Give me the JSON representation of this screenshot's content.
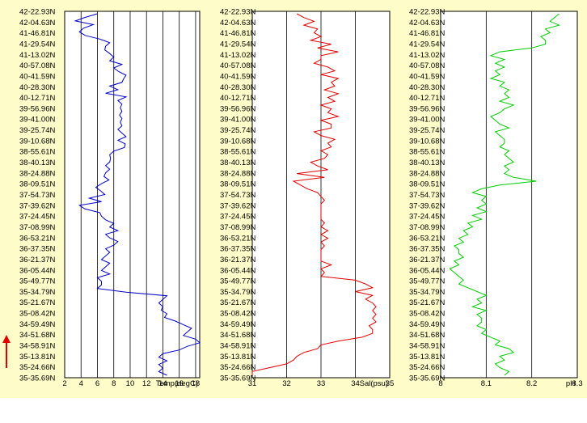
{
  "colors": {
    "panel_bg": "#fefcc9",
    "plot_bg": "#ffffff",
    "temperature": "#0000c8",
    "salinity": "#e00000",
    "ph": "#00cc00",
    "arrow": "#e00000"
  },
  "icons": {
    "direction_arrow": "up-arrow-icon"
  },
  "chart_data": [
    {
      "type": "line",
      "orientation": "vertical-profile",
      "xlabel": "Temp(degC)",
      "xlim": [
        2,
        18.5
      ],
      "xticks": [
        "2",
        "4",
        "6",
        "8",
        "10",
        "12",
        "14",
        "16",
        "18"
      ],
      "grid": true,
      "latitude_labels": [
        "42-22.93N",
        "42-04.63N",
        "41-46.81N",
        "41-29.54N",
        "41-13.02N",
        "40-57.08N",
        "40-41.59N",
        "40-28.30N",
        "40-12.71N",
        "39-56.96N",
        "39-41.00N",
        "39-25.74N",
        "39-10.68N",
        "38-55.61N",
        "38-40.13N",
        "38-24.88N",
        "38-09.51N",
        "37-54.73N",
        "37-39.62N",
        "37-24.45N",
        "37-08.99N",
        "36-53.21N",
        "36-37.35N",
        "36-21.37N",
        "36-05.44N",
        "35-49.77N",
        "35-34.79N",
        "35-21.67N",
        "35-08.42N",
        "34-59.49N",
        "34-51.68N",
        "34-58.91N",
        "35-13.81N",
        "35-24.66N",
        "35-35.69N"
      ],
      "values": [
        6.0,
        4.5,
        3.3,
        5.5,
        4.3,
        3.8,
        4.5,
        6.3,
        7.5,
        7.0,
        6.9,
        7.5,
        8.0,
        7.5,
        9.0,
        8.0,
        8.6,
        9.5,
        9.2,
        9.0,
        7.5,
        8.5,
        7.0,
        9.5,
        8.5,
        9.0,
        8.8,
        9.0,
        8.7,
        9.0,
        8.8,
        9.0,
        8.5,
        9.0,
        9.5,
        8.5,
        9.4,
        9.3,
        8.0,
        7.5,
        7.6,
        7.5,
        7.0,
        7.5,
        7.0,
        6.8,
        7.4,
        6.5,
        5.8,
        6.4,
        6.9,
        5.0,
        6.5,
        3.8,
        4.5,
        6.3,
        6.5,
        7.0,
        8.0,
        7.5,
        8.5,
        7.0,
        7.5,
        8.5,
        8.0,
        7.0,
        7.5,
        7.0,
        6.5,
        7.5,
        7.0,
        6.5,
        7.5,
        6.0,
        6.5,
        6.5,
        6.0,
        9.5,
        14.5,
        14.0,
        13.5,
        14.0,
        13.8,
        14.5,
        14.2,
        15.5,
        16.5,
        17.5,
        17.0,
        16.5,
        18.0,
        18.5,
        17.0,
        16.0,
        14.0,
        13.5,
        14.5,
        13.5,
        14.0,
        13.5,
        14.5
      ]
    },
    {
      "type": "line",
      "orientation": "vertical-profile",
      "xlabel": "Sal(psu)",
      "xlim": [
        31,
        35
      ],
      "xticks": [
        "31",
        "32",
        "33",
        "34",
        "35"
      ],
      "grid": true,
      "latitude_labels": [
        "42-22.93N",
        "42-04.63N",
        "41-46.81N",
        "41-29.54N",
        "41-13.02N",
        "40-57.08N",
        "40-41.59N",
        "40-28.30N",
        "40-12.71N",
        "39-56.96N",
        "39-41.00N",
        "39-25.74N",
        "39-10.68N",
        "38-55.61N",
        "38-40.13N",
        "38-24.88N",
        "38-09.51N",
        "37-54.73N",
        "37-39.62N",
        "37-24.45N",
        "37-08.99N",
        "36-53.21N",
        "36-37.35N",
        "36-21.37N",
        "36-05.44N",
        "35-49.77N",
        "35-34.79N",
        "35-21.67N",
        "35-08.42N",
        "34-59.49N",
        "34-51.68N",
        "34-58.91N",
        "35-13.81N",
        "35-24.66N",
        "35-35.69N"
      ],
      "values": [
        32.3,
        32.5,
        32.8,
        32.5,
        32.9,
        32.8,
        33.0,
        32.7,
        33.3,
        32.9,
        33.5,
        33.0,
        33.0,
        32.8,
        33.2,
        33.4,
        33.0,
        33.5,
        33.3,
        33.4,
        33.1,
        33.5,
        33.2,
        33.4,
        33.0,
        33.3,
        33.2,
        33.5,
        33.0,
        33.3,
        33.3,
        32.8,
        33.0,
        33.4,
        33.2,
        33.3,
        33.0,
        33.2,
        33.1,
        32.7,
        32.9,
        33.2,
        32.3,
        33.1,
        32.2,
        32.4,
        32.6,
        32.9,
        33.0,
        33.1,
        33.0,
        33.0,
        33.0,
        33.0,
        33.0,
        33.1,
        33.0,
        33.2,
        33.0,
        33.2,
        33.0,
        33.1,
        33.0,
        33.0,
        33.0,
        33.0,
        33.3,
        33.0,
        33.1,
        33.0,
        34.0,
        34.3,
        34.5,
        34.0,
        34.5,
        34.3,
        34.5,
        34.6,
        34.5,
        34.6,
        34.5,
        34.6,
        34.4,
        34.5,
        34.5,
        34.2,
        33.5,
        33.0,
        32.9,
        32.5,
        32.3,
        32.2,
        32.0,
        31.5,
        31.0,
        31.0
      ]
    },
    {
      "type": "line",
      "orientation": "vertical-profile",
      "xlabel": "pH",
      "xlim": [
        8.0,
        8.3
      ],
      "xticks": [
        "8",
        "8.1",
        "8.2",
        "8.3"
      ],
      "grid": true,
      "latitude_labels": [
        "42-22.93N",
        "42-04.63N",
        "41-46.81N",
        "41-29.54N",
        "41-13.02N",
        "40-57.08N",
        "40-41.59N",
        "40-28.30N",
        "40-12.71N",
        "39-56.96N",
        "39-41.00N",
        "39-25.74N",
        "39-10.68N",
        "38-55.61N",
        "38-40.13N",
        "38-24.88N",
        "38-09.51N",
        "37-54.73N",
        "37-39.62N",
        "37-24.45N",
        "37-08.99N",
        "36-53.21N",
        "36-37.35N",
        "36-21.37N",
        "36-05.44N",
        "35-49.77N",
        "35-34.79N",
        "35-21.67N",
        "35-08.42N",
        "34-59.49N",
        "34-51.68N",
        "34-58.91N",
        "35-13.81N",
        "35-24.66N",
        "35-35.69N"
      ],
      "values": [
        8.26,
        8.25,
        8.24,
        8.26,
        8.23,
        8.24,
        8.22,
        8.23,
        8.23,
        8.2,
        8.13,
        8.11,
        8.14,
        8.12,
        8.14,
        8.12,
        8.13,
        8.11,
        8.14,
        8.13,
        8.15,
        8.14,
        8.15,
        8.13,
        8.16,
        8.14,
        8.13,
        8.11,
        8.12,
        8.13,
        8.15,
        8.12,
        8.13,
        8.14,
        8.14,
        8.13,
        8.15,
        8.14,
        8.15,
        8.16,
        8.14,
        8.15,
        8.14,
        8.16,
        8.21,
        8.13,
        8.09,
        8.07,
        8.1,
        8.09,
        8.1,
        8.08,
        8.1,
        8.07,
        8.09,
        8.06,
        8.07,
        8.05,
        8.06,
        8.04,
        8.05,
        8.03,
        8.04,
        8.04,
        8.05,
        8.03,
        8.04,
        8.02,
        8.03,
        8.04,
        8.05,
        8.04,
        8.06,
        8.08,
        8.1,
        8.08,
        8.09,
        8.07,
        8.1,
        8.08,
        8.09,
        8.09,
        8.08,
        8.1,
        8.09,
        8.11,
        8.13,
        8.12,
        8.15,
        8.16,
        8.13,
        8.14,
        8.12,
        8.13,
        8.15,
        8.14
      ]
    }
  ]
}
